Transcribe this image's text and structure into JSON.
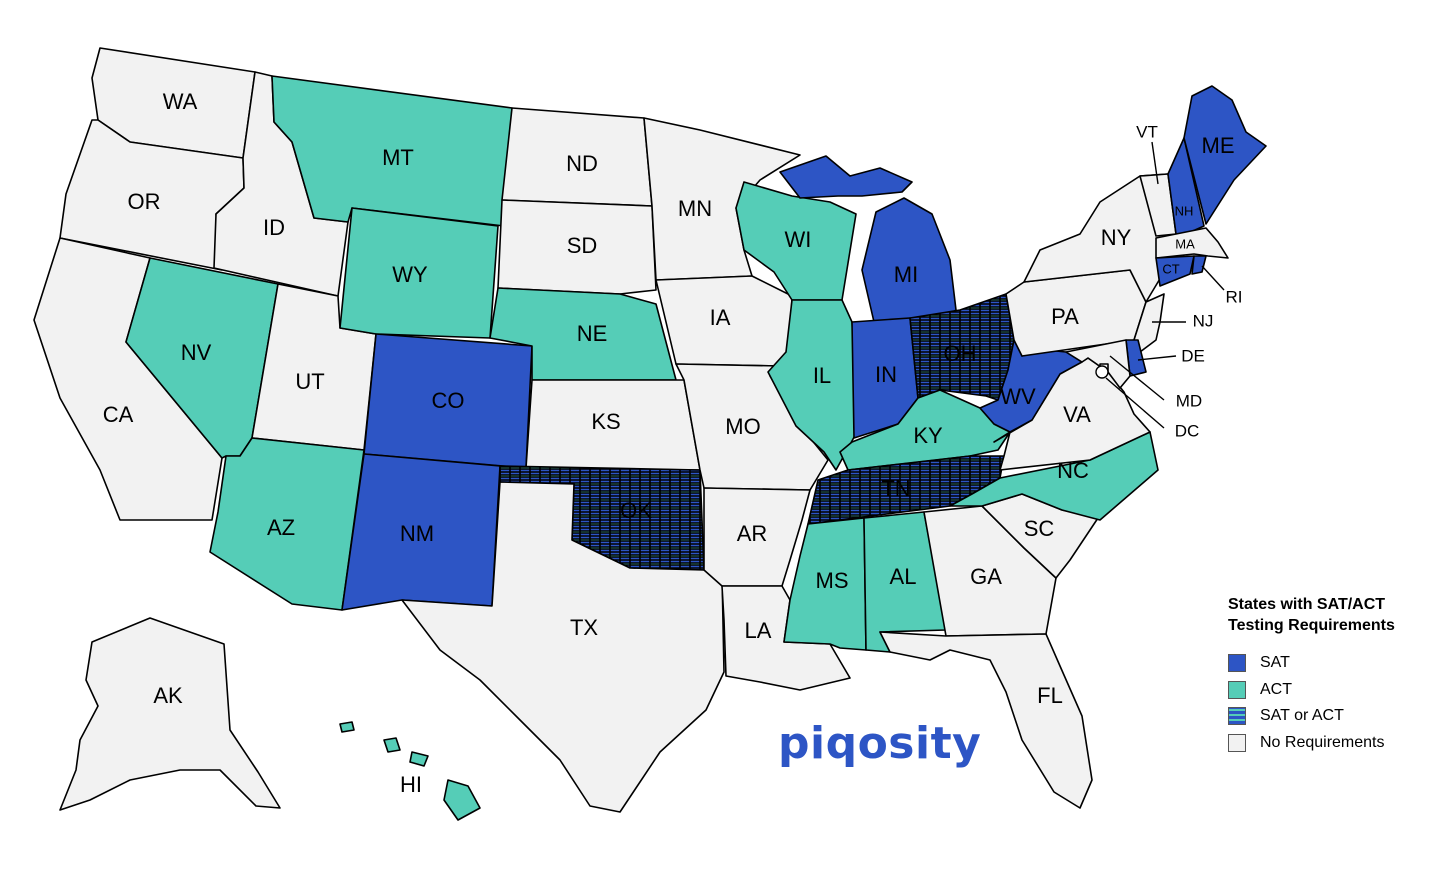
{
  "legend": {
    "title_line1": "States with SAT/ACT",
    "title_line2": "Testing Requirements",
    "items": [
      {
        "key": "SAT",
        "label": "SAT",
        "color": "#2d55c5"
      },
      {
        "key": "ACT",
        "label": "ACT",
        "color": "#55cdb7"
      },
      {
        "key": "BOTH",
        "label": "SAT or ACT",
        "color": "#2d55c5",
        "stripe_color": "#55cdb7"
      },
      {
        "key": "NONE",
        "label": "No Requirements",
        "color": "#f2f2f2"
      }
    ]
  },
  "brand": "piqosity",
  "states": {
    "WA": "NONE",
    "OR": "NONE",
    "CA": "NONE",
    "ID": "NONE",
    "NV": "ACT",
    "UT": "NONE",
    "AZ": "ACT",
    "MT": "ACT",
    "WY": "ACT",
    "CO": "SAT",
    "NM": "SAT",
    "ND": "NONE",
    "SD": "NONE",
    "NE": "ACT",
    "KS": "NONE",
    "OK": "BOTH",
    "TX": "NONE",
    "MN": "NONE",
    "IA": "NONE",
    "MO": "NONE",
    "AR": "NONE",
    "LA": "NONE",
    "WI": "ACT",
    "IL": "ACT",
    "MI": "SAT",
    "IN": "SAT",
    "OH": "BOTH",
    "KY": "ACT",
    "TN": "BOTH",
    "MS": "ACT",
    "AL": "ACT",
    "GA": "NONE",
    "FL": "NONE",
    "SC": "NONE",
    "NC": "ACT",
    "VA": "NONE",
    "WV": "SAT",
    "PA": "NONE",
    "NY": "NONE",
    "VT": "NONE",
    "NH": "SAT",
    "ME": "SAT",
    "MA": "NONE",
    "CT": "SAT",
    "RI": "SAT",
    "NJ": "NONE",
    "DE": "SAT",
    "MD": "NONE",
    "DC": "NONE",
    "AK": "NONE",
    "HI": "ACT"
  }
}
